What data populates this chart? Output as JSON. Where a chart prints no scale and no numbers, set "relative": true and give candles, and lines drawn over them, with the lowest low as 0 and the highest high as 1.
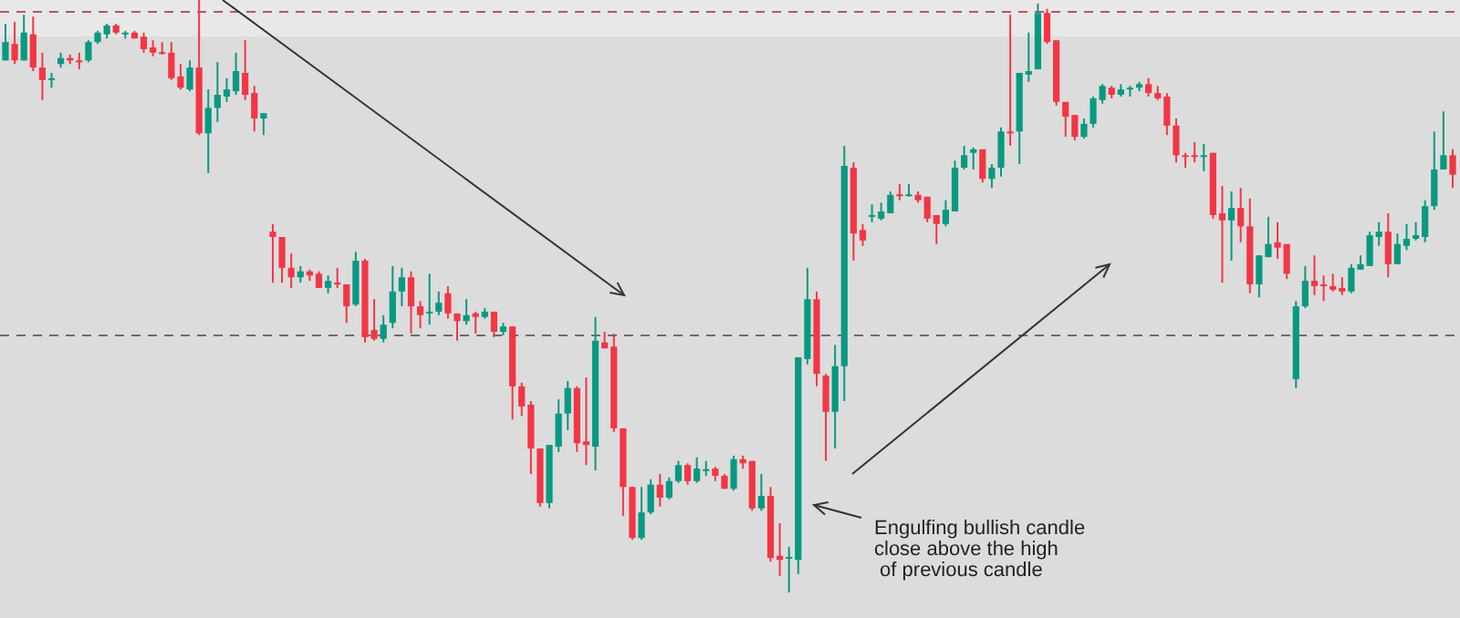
{
  "chart_data": {
    "type": "candlestick",
    "relative": true,
    "categories": [
      null,
      null,
      null,
      null,
      null,
      null,
      null,
      null,
      null,
      null,
      null,
      null,
      null,
      null,
      null,
      null,
      null,
      null,
      null,
      null,
      null,
      null,
      null,
      null,
      null,
      null,
      null,
      null,
      null,
      null,
      null,
      null,
      null,
      null,
      null,
      null,
      null,
      null,
      null,
      null,
      null,
      null,
      null,
      null,
      null,
      null,
      null,
      null,
      null,
      null,
      null,
      null,
      null,
      null,
      null,
      null,
      null,
      null,
      null,
      null,
      null,
      null,
      null,
      null,
      null,
      null,
      null,
      null,
      null,
      null,
      null,
      null,
      null,
      null,
      null,
      null,
      null,
      null,
      null,
      null,
      null,
      null,
      null,
      null,
      null,
      null,
      null,
      null,
      null,
      null,
      null,
      null,
      null,
      null,
      null,
      null,
      null,
      null,
      null,
      null,
      null,
      null,
      null,
      null,
      null,
      null,
      null,
      null,
      null,
      null,
      null,
      null,
      null,
      null,
      null,
      null,
      null,
      null,
      null,
      null,
      null,
      null,
      null,
      null,
      null,
      null,
      null,
      null,
      null,
      null,
      null,
      null,
      null,
      null,
      null,
      null,
      null,
      null,
      null,
      null,
      null,
      null,
      null,
      null,
      null,
      null,
      null,
      null,
      null,
      null,
      null,
      null,
      null,
      null,
      null,
      null,
      null,
      null
    ],
    "ohlc": [
      [
        0.898,
        0.96,
        0.898,
        0.929
      ],
      [
        0.926,
        0.963,
        0.892,
        0.898
      ],
      [
        0.898,
        0.975,
        0.898,
        0.945
      ],
      [
        0.942,
        0.972,
        0.88,
        0.886
      ],
      [
        0.886,
        0.911,
        0.831,
        0.865
      ],
      [
        0.865,
        0.877,
        0.852,
        0.868
      ],
      [
        0.892,
        0.911,
        0.886,
        0.902
      ],
      [
        0.902,
        0.908,
        0.892,
        0.898
      ],
      [
        0.898,
        0.911,
        0.883,
        0.895
      ],
      [
        0.898,
        0.932,
        0.895,
        0.929
      ],
      [
        0.929,
        0.948,
        0.926,
        0.945
      ],
      [
        0.942,
        0.96,
        0.935,
        0.957
      ],
      [
        0.957,
        0.96,
        0.942,
        0.945
      ],
      [
        0.942,
        0.948,
        0.935,
        0.945
      ],
      [
        0.945,
        0.948,
        0.935,
        0.935
      ],
      [
        0.938,
        0.945,
        0.911,
        0.917
      ],
      [
        0.92,
        0.932,
        0.905,
        0.911
      ],
      [
        0.912,
        0.929,
        0.908,
        0.911
      ],
      [
        0.911,
        0.929,
        0.865,
        0.868
      ],
      [
        0.871,
        0.892,
        0.849,
        0.852
      ],
      [
        0.849,
        0.898,
        0.846,
        0.886
      ],
      [
        0.886,
        1,
        0.772,
        0.775
      ],
      [
        0.775,
        0.849,
        0.708,
        0.818
      ],
      [
        0.818,
        0.895,
        0.794,
        0.84
      ],
      [
        0.837,
        0.868,
        0.828,
        0.849
      ],
      [
        0.846,
        0.911,
        0.84,
        0.88
      ],
      [
        0.877,
        0.932,
        0.831,
        0.84
      ],
      [
        0.843,
        0.855,
        0.778,
        0.8
      ],
      [
        0.8,
        0.809,
        0.772,
        0.809
      ],
      [
        0.609,
        0.622,
        0.523,
        0.6
      ],
      [
        0.6,
        0.6,
        0.523,
        0.548
      ],
      [
        0.548,
        0.572,
        0.514,
        0.532
      ],
      [
        0.532,
        0.551,
        0.523,
        0.542
      ],
      [
        0.542,
        0.545,
        0.526,
        0.535
      ],
      [
        0.538,
        0.542,
        0.514,
        0.514
      ],
      [
        0.514,
        0.535,
        0.505,
        0.526
      ],
      [
        0.523,
        0.548,
        0.514,
        0.52
      ],
      [
        0.52,
        0.52,
        0.455,
        0.483
      ],
      [
        0.486,
        0.575,
        0.483,
        0.56
      ],
      [
        0.56,
        0.563,
        0.422,
        0.431
      ],
      [
        0.443,
        0.495,
        0.425,
        0.428
      ],
      [
        0.428,
        0.468,
        0.422,
        0.452
      ],
      [
        0.455,
        0.551,
        0.446,
        0.508
      ],
      [
        0.508,
        0.548,
        0.483,
        0.532
      ],
      [
        0.532,
        0.542,
        0.437,
        0.483
      ],
      [
        0.483,
        0.492,
        0.446,
        0.468
      ],
      [
        0.471,
        0.538,
        0.452,
        0.474
      ],
      [
        0.474,
        0.508,
        0.468,
        0.489
      ],
      [
        0.505,
        0.517,
        0.462,
        0.471
      ],
      [
        0.471,
        0.471,
        0.425,
        0.458
      ],
      [
        0.458,
        0.495,
        0.452,
        0.468
      ],
      [
        0.471,
        0.474,
        0.437,
        0.465
      ],
      [
        0.465,
        0.48,
        0.462,
        0.474
      ],
      [
        0.474,
        0.474,
        0.431,
        0.44
      ],
      [
        0.44,
        0.455,
        0.434,
        0.449
      ],
      [
        0.449,
        0.449,
        0.292,
        0.348
      ],
      [
        0.348,
        0.354,
        0.298,
        0.314
      ],
      [
        0.317,
        0.323,
        0.2,
        0.243
      ],
      [
        0.243,
        0.243,
        0.145,
        0.151
      ],
      [
        0.151,
        0.249,
        0.142,
        0.249
      ],
      [
        0.246,
        0.326,
        0.237,
        0.302
      ],
      [
        0.302,
        0.357,
        0.274,
        0.345
      ],
      [
        0.345,
        0.348,
        0.237,
        0.252
      ],
      [
        0.255,
        0.363,
        0.215,
        0.249
      ],
      [
        0.246,
        0.465,
        0.206,
        0.425
      ],
      [
        0.422,
        0.44,
        0.412,
        0.412
      ],
      [
        0.415,
        0.437,
        0.271,
        0.277
      ],
      [
        0.277,
        0.277,
        0.129,
        0.178
      ],
      [
        0.178,
        0.178,
        0.089,
        0.092
      ],
      [
        0.092,
        0.178,
        0.089,
        0.135
      ],
      [
        0.135,
        0.191,
        0.132,
        0.182
      ],
      [
        0.182,
        0.2,
        0.145,
        0.16
      ],
      [
        0.16,
        0.194,
        0.157,
        0.188
      ],
      [
        0.188,
        0.222,
        0.185,
        0.215
      ],
      [
        0.215,
        0.218,
        0.182,
        0.188
      ],
      [
        0.188,
        0.228,
        0.185,
        0.209
      ],
      [
        0.205,
        0.222,
        0.197,
        0.208
      ],
      [
        0.209,
        0.212,
        0.188,
        0.197
      ],
      [
        0.197,
        0.2,
        0.175,
        0.175
      ],
      [
        0.175,
        0.231,
        0.172,
        0.225
      ],
      [
        0.225,
        0.231,
        0.209,
        0.218
      ],
      [
        0.222,
        0.222,
        0.138,
        0.142
      ],
      [
        0.142,
        0.2,
        0.138,
        0.163
      ],
      [
        0.163,
        0.178,
        0.052,
        0.058
      ],
      [
        0.062,
        0.117,
        0.028,
        0.055
      ],
      [
        0.057,
        0.077,
        0,
        0.06
      ],
      [
        0.055,
        0.397,
        0.031,
        0.397
      ],
      [
        0.394,
        0.548,
        0.385,
        0.495
      ],
      [
        0.495,
        0.508,
        0.348,
        0.369
      ],
      [
        0.366,
        0.369,
        0.222,
        0.305
      ],
      [
        0.305,
        0.418,
        0.243,
        0.382
      ],
      [
        0.382,
        0.754,
        0.323,
        0.72
      ],
      [
        0.717,
        0.726,
        0.56,
        0.606
      ],
      [
        0.612,
        0.622,
        0.585,
        0.594
      ],
      [
        0.634,
        0.655,
        0.625,
        0.637
      ],
      [
        0.631,
        0.658,
        0.628,
        0.643
      ],
      [
        0.64,
        0.677,
        0.64,
        0.671
      ],
      [
        0.672,
        0.689,
        0.662,
        0.669
      ],
      [
        0.669,
        0.689,
        0.668,
        0.672
      ],
      [
        0.671,
        0.677,
        0.658,
        0.662
      ],
      [
        0.668,
        0.668,
        0.625,
        0.631
      ],
      [
        0.637,
        0.637,
        0.588,
        0.622
      ],
      [
        0.622,
        0.662,
        0.618,
        0.646
      ],
      [
        0.643,
        0.729,
        0.643,
        0.717
      ],
      [
        0.717,
        0.754,
        0.714,
        0.738
      ],
      [
        0.742,
        0.751,
        0.714,
        0.748
      ],
      [
        0.748,
        0.748,
        0.692,
        0.698
      ],
      [
        0.698,
        0.723,
        0.683,
        0.717
      ],
      [
        0.717,
        0.785,
        0.702,
        0.778
      ],
      [
        0.778,
        0.975,
        0.754,
        0.775
      ],
      [
        0.778,
        0.877,
        0.723,
        0.877
      ],
      [
        0.874,
        0.945,
        0.862,
        0.88
      ],
      [
        0.883,
        0.994,
        0.883,
        0.978
      ],
      [
        0.978,
        0.985,
        0.926,
        0.929
      ],
      [
        0.932,
        0.932,
        0.822,
        0.828
      ],
      [
        0.828,
        0.828,
        0.769,
        0.803
      ],
      [
        0.806,
        0.806,
        0.763,
        0.769
      ],
      [
        0.769,
        0.8,
        0.766,
        0.791
      ],
      [
        0.791,
        0.837,
        0.785,
        0.834
      ],
      [
        0.831,
        0.858,
        0.825,
        0.855
      ],
      [
        0.852,
        0.855,
        0.834,
        0.84
      ],
      [
        0.84,
        0.858,
        0.837,
        0.849
      ],
      [
        0.851,
        0.855,
        0.837,
        0.852
      ],
      [
        0.852,
        0.862,
        0.846,
        0.858
      ],
      [
        0.858,
        0.868,
        0.837,
        0.843
      ],
      [
        0.843,
        0.855,
        0.831,
        0.834
      ],
      [
        0.837,
        0.843,
        0.772,
        0.788
      ],
      [
        0.788,
        0.8,
        0.726,
        0.738
      ],
      [
        0.738,
        0.742,
        0.717,
        0.737
      ],
      [
        0.738,
        0.76,
        0.726,
        0.737
      ],
      [
        0.737,
        0.757,
        0.711,
        0.738
      ],
      [
        0.742,
        0.742,
        0.631,
        0.637
      ],
      [
        0.64,
        0.686,
        0.523,
        0.628
      ],
      [
        0.628,
        0.677,
        0.56,
        0.649
      ],
      [
        0.649,
        0.683,
        0.591,
        0.618
      ],
      [
        0.618,
        0.665,
        0.505,
        0.52
      ],
      [
        0.52,
        0.569,
        0.498,
        0.569
      ],
      [
        0.566,
        0.634,
        0.566,
        0.588
      ],
      [
        0.591,
        0.625,
        0.563,
        0.582
      ],
      [
        0.588,
        0.588,
        0.529,
        0.538
      ],
      [
        0.36,
        0.492,
        0.345,
        0.483
      ],
      [
        0.483,
        0.551,
        0.48,
        0.526
      ],
      [
        0.526,
        0.569,
        0.502,
        0.517
      ],
      [
        0.52,
        0.535,
        0.492,
        0.517
      ],
      [
        0.517,
        0.538,
        0.508,
        0.511
      ],
      [
        0.514,
        0.532,
        0.502,
        0.508
      ],
      [
        0.508,
        0.554,
        0.505,
        0.548
      ],
      [
        0.545,
        0.569,
        0.545,
        0.554
      ],
      [
        0.551,
        0.609,
        0.551,
        0.603
      ],
      [
        0.6,
        0.625,
        0.585,
        0.609
      ],
      [
        0.609,
        0.64,
        0.532,
        0.554
      ],
      [
        0.554,
        0.606,
        0.554,
        0.588
      ],
      [
        0.585,
        0.622,
        0.578,
        0.597
      ],
      [
        0.597,
        0.625,
        0.594,
        0.603
      ],
      [
        0.6,
        0.662,
        0.591,
        0.652
      ],
      [
        0.652,
        0.778,
        0.646,
        0.714
      ],
      [
        0.714,
        0.812,
        0.714,
        0.738
      ],
      [
        0.738,
        0.748,
        0.683,
        0.705
      ]
    ],
    "ref_lines": [
      {
        "axis": "y",
        "value": 0.98,
        "color": "#b85560",
        "line_style": "dashed"
      },
      {
        "axis": "y",
        "value": 0.434,
        "color": "#6b6b6b",
        "line_style": "dashed"
      }
    ],
    "bands": [
      {
        "axis": "y",
        "from": 0.938,
        "to": 1,
        "color": "#e8e8e8"
      }
    ],
    "annotations": [
      "Engulfing bullish candle\nclose above the high\n of previous candle"
    ]
  }
}
